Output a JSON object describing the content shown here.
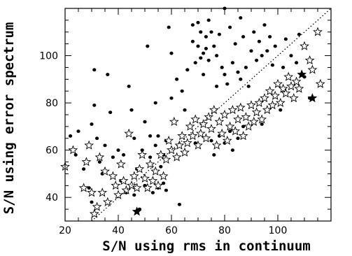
{
  "chart_data": {
    "type": "scatter",
    "xlabel": "S/N using rms in continuum",
    "ylabel": "S/N using error spectrum",
    "xlim": [
      20,
      120
    ],
    "ylim": [
      30,
      120
    ],
    "x_ticks": [
      20,
      40,
      60,
      80,
      100
    ],
    "y_ticks": [
      40,
      60,
      80,
      100
    ],
    "reference_line": {
      "style": "dotted",
      "relation": "y = x"
    },
    "series": [
      {
        "marker": "filled-circle",
        "points": [
          [
            22,
            66
          ],
          [
            24,
            58
          ],
          [
            25,
            68
          ],
          [
            27,
            52
          ],
          [
            29,
            44
          ],
          [
            30,
            71
          ],
          [
            30,
            38
          ],
          [
            31,
            94
          ],
          [
            31,
            79
          ],
          [
            32,
            65
          ],
          [
            33,
            55
          ],
          [
            34,
            50
          ],
          [
            35,
            62
          ],
          [
            36,
            92
          ],
          [
            37,
            76
          ],
          [
            38,
            57
          ],
          [
            40,
            60
          ],
          [
            41,
            47
          ],
          [
            42,
            58
          ],
          [
            43,
            42
          ],
          [
            44,
            87
          ],
          [
            45,
            77
          ],
          [
            46,
            65
          ],
          [
            46,
            41
          ],
          [
            47,
            52
          ],
          [
            48,
            35
          ],
          [
            49,
            60
          ],
          [
            50,
            72
          ],
          [
            50,
            45
          ],
          [
            51,
            104
          ],
          [
            52,
            66
          ],
          [
            52,
            57
          ],
          [
            53,
            42
          ],
          [
            54,
            62
          ],
          [
            54,
            80
          ],
          [
            55,
            66
          ],
          [
            55,
            44
          ],
          [
            56,
            53
          ],
          [
            57,
            58
          ],
          [
            57,
            46
          ],
          [
            58,
            64
          ],
          [
            58,
            43
          ],
          [
            59,
            112
          ],
          [
            60,
            82
          ],
          [
            60,
            101
          ],
          [
            62,
            90
          ],
          [
            62,
            57
          ],
          [
            63,
            37
          ],
          [
            64,
            85
          ],
          [
            65,
            77
          ],
          [
            66,
            94
          ],
          [
            67,
            70
          ],
          [
            68,
            113
          ],
          [
            68,
            106
          ],
          [
            69,
            97
          ],
          [
            69,
            63
          ],
          [
            70,
            104
          ],
          [
            70,
            114
          ],
          [
            71,
            99
          ],
          [
            71,
            110
          ],
          [
            72,
            101
          ],
          [
            72,
            92
          ],
          [
            73,
            108
          ],
          [
            73,
            103
          ],
          [
            74,
            115
          ],
          [
            74,
            98
          ],
          [
            75,
            110
          ],
          [
            75,
            64
          ],
          [
            76,
            104
          ],
          [
            76,
            58
          ],
          [
            77,
            100
          ],
          [
            77,
            87
          ],
          [
            78,
            109
          ],
          [
            78,
            66
          ],
          [
            79,
            95
          ],
          [
            80,
            120
          ],
          [
            80,
            92
          ],
          [
            80,
            63
          ],
          [
            81,
            88
          ],
          [
            82,
            112
          ],
          [
            82,
            68
          ],
          [
            83,
            97
          ],
          [
            83,
            60
          ],
          [
            84,
            105
          ],
          [
            85,
            93
          ],
          [
            85,
            65
          ],
          [
            86,
            116
          ],
          [
            86,
            90
          ],
          [
            87,
            108
          ],
          [
            87,
            70
          ],
          [
            88,
            95
          ],
          [
            89,
            87
          ],
          [
            90,
            102
          ],
          [
            91,
            110
          ],
          [
            92,
            98
          ],
          [
            93,
            106
          ],
          [
            94,
            100
          ],
          [
            94,
            71
          ],
          [
            95,
            113
          ],
          [
            96,
            102
          ],
          [
            97,
            108
          ],
          [
            98,
            96
          ],
          [
            99,
            104
          ],
          [
            100,
            88
          ],
          [
            101,
            77
          ],
          [
            102,
            95
          ],
          [
            103,
            107
          ],
          [
            105,
            100
          ],
          [
            107,
            97
          ],
          [
            108,
            109
          ],
          [
            110,
            91
          ],
          [
            112,
            82
          ]
        ]
      },
      {
        "marker": "open-star",
        "points": [
          [
            20,
            53
          ],
          [
            23,
            60
          ],
          [
            27,
            44
          ],
          [
            28,
            55
          ],
          [
            29,
            62
          ],
          [
            30,
            42
          ],
          [
            31,
            33
          ],
          [
            32,
            36
          ],
          [
            33,
            57
          ],
          [
            34,
            42
          ],
          [
            35,
            51
          ],
          [
            36,
            38
          ],
          [
            38,
            49
          ],
          [
            39,
            45
          ],
          [
            40,
            41
          ],
          [
            41,
            54
          ],
          [
            42,
            47
          ],
          [
            43,
            43
          ],
          [
            44,
            67
          ],
          [
            45,
            45
          ],
          [
            46,
            49
          ],
          [
            47,
            44
          ],
          [
            48,
            52
          ],
          [
            49,
            58
          ],
          [
            50,
            48
          ],
          [
            51,
            44
          ],
          [
            52,
            54
          ],
          [
            53,
            47
          ],
          [
            54,
            51
          ],
          [
            55,
            45
          ],
          [
            56,
            58
          ],
          [
            57,
            49
          ],
          [
            58,
            56
          ],
          [
            59,
            64
          ],
          [
            60,
            60
          ],
          [
            61,
            72
          ],
          [
            62,
            57
          ],
          [
            63,
            62
          ],
          [
            64,
            66
          ],
          [
            65,
            59
          ],
          [
            66,
            63
          ],
          [
            67,
            70
          ],
          [
            68,
            66
          ],
          [
            69,
            73
          ],
          [
            70,
            62
          ],
          [
            71,
            67
          ],
          [
            72,
            71
          ],
          [
            73,
            65
          ],
          [
            74,
            74
          ],
          [
            75,
            69
          ],
          [
            76,
            77
          ],
          [
            77,
            62
          ],
          [
            78,
            72
          ],
          [
            79,
            67
          ],
          [
            80,
            75
          ],
          [
            81,
            64
          ],
          [
            82,
            70
          ],
          [
            83,
            77
          ],
          [
            84,
            68
          ],
          [
            85,
            73
          ],
          [
            86,
            78
          ],
          [
            87,
            66
          ],
          [
            88,
            74
          ],
          [
            89,
            70
          ],
          [
            90,
            79
          ],
          [
            91,
            72
          ],
          [
            92,
            76
          ],
          [
            93,
            80
          ],
          [
            94,
            73
          ],
          [
            95,
            82
          ],
          [
            96,
            77
          ],
          [
            97,
            85
          ],
          [
            98,
            79
          ],
          [
            99,
            83
          ],
          [
            100,
            88
          ],
          [
            101,
            80
          ],
          [
            102,
            86
          ],
          [
            103,
            84
          ],
          [
            104,
            91
          ],
          [
            105,
            87
          ],
          [
            106,
            82
          ],
          [
            107,
            89
          ],
          [
            108,
            86
          ],
          [
            110,
            104
          ],
          [
            112,
            98
          ],
          [
            113,
            94
          ],
          [
            115,
            110
          ],
          [
            116,
            88
          ]
        ]
      },
      {
        "marker": "filled-star",
        "points": [
          [
            47,
            34
          ],
          [
            109,
            92
          ],
          [
            113,
            82
          ]
        ]
      }
    ]
  }
}
